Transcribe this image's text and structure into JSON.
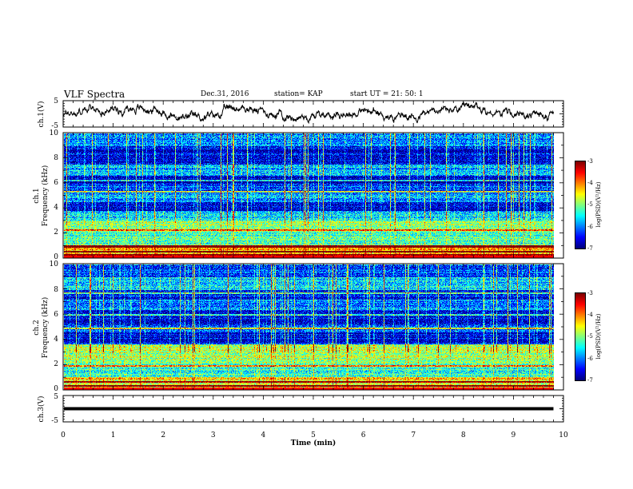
{
  "header": {
    "title": "VLF Spectra",
    "date": "Dec.31, 2016",
    "station": "station= KAP",
    "start": "start  UT =   21: 50: 1"
  },
  "chart_data": [
    {
      "type": "line",
      "name": "ch1-waveform",
      "ylabel": "ch.1(V)",
      "ylim": [
        -5,
        5
      ],
      "yticks": [
        "5",
        "-5"
      ],
      "xlim": [
        0,
        10
      ],
      "baseline_levels": [
        {
          "x": 0.0,
          "y": 0.0
        },
        {
          "x": 0.5,
          "y": 1.5
        },
        {
          "x": 1.0,
          "y": 2.0
        },
        {
          "x": 1.5,
          "y": 2.2
        },
        {
          "x": 2.0,
          "y": 1.2
        },
        {
          "x": 2.3,
          "y": -2.0
        },
        {
          "x": 3.0,
          "y": -1.0
        },
        {
          "x": 3.4,
          "y": 2.5
        },
        {
          "x": 4.0,
          "y": 1.0
        },
        {
          "x": 4.5,
          "y": -1.0
        },
        {
          "x": 5.0,
          "y": -1.0
        },
        {
          "x": 5.5,
          "y": 0.5
        },
        {
          "x": 6.0,
          "y": 1.0
        },
        {
          "x": 6.5,
          "y": -0.5
        },
        {
          "x": 7.0,
          "y": -1.0
        },
        {
          "x": 7.5,
          "y": 1.0
        },
        {
          "x": 8.0,
          "y": 2.0
        },
        {
          "x": 8.5,
          "y": 1.0
        },
        {
          "x": 9.0,
          "y": 0.0
        },
        {
          "x": 9.5,
          "y": -1.0
        },
        {
          "x": 9.8,
          "y": 0.0
        }
      ]
    },
    {
      "type": "heatmap",
      "name": "ch1-spectrogram",
      "ylabel_line1": "ch.1",
      "ylabel_line2": "Frequency (kHz)",
      "ylim": [
        0,
        10
      ],
      "yticks": [
        "0",
        "2",
        "4",
        "6",
        "8",
        "10"
      ],
      "xlim": [
        0,
        10
      ],
      "data_end_min": 9.8,
      "colorbar": {
        "label": "log(PSD)(V²/Hz)",
        "range": [
          -7,
          -3
        ],
        "ticks": [
          "-3",
          "-4",
          "-5",
          "-6",
          "-7"
        ]
      },
      "frequency_bands_kHz": [
        {
          "from": 0.0,
          "to": 1.0,
          "level": -4.2
        },
        {
          "from": 1.0,
          "to": 2.0,
          "level": -5.2
        },
        {
          "from": 2.0,
          "to": 3.0,
          "level": -5.0
        },
        {
          "from": 3.0,
          "to": 3.8,
          "level": -5.6
        },
        {
          "from": 3.8,
          "to": 4.5,
          "level": -6.6
        },
        {
          "from": 4.5,
          "to": 5.2,
          "level": -5.8
        },
        {
          "from": 5.2,
          "to": 6.0,
          "level": -6.2
        },
        {
          "from": 6.0,
          "to": 6.6,
          "level": -6.8
        },
        {
          "from": 6.6,
          "to": 7.5,
          "level": -5.8
        },
        {
          "from": 7.5,
          "to": 9.0,
          "level": -6.6
        },
        {
          "from": 9.0,
          "to": 10.0,
          "level": -5.9
        }
      ],
      "lines_kHz": [
        0.2,
        0.5,
        0.9,
        2.2,
        5.3,
        6.2
      ]
    },
    {
      "type": "heatmap",
      "name": "ch2-spectrogram",
      "ylabel_line1": "ch.2",
      "ylabel_line2": "Frequency (kHz)",
      "ylim": [
        0,
        10
      ],
      "yticks": [
        "0",
        "2",
        "4",
        "6",
        "8",
        "10"
      ],
      "xlim": [
        0,
        10
      ],
      "data_end_min": 9.8,
      "colorbar": {
        "label": "log(PSD)(V²/Hz)",
        "range": [
          -7,
          -3
        ],
        "ticks": [
          "-3",
          "-4",
          "-5",
          "-6",
          "-7"
        ]
      },
      "frequency_bands_kHz": [
        {
          "from": 0.0,
          "to": 1.0,
          "level": -4.4
        },
        {
          "from": 1.0,
          "to": 2.0,
          "level": -5.4
        },
        {
          "from": 2.0,
          "to": 3.6,
          "level": -4.9
        },
        {
          "from": 3.6,
          "to": 4.6,
          "level": -6.6
        },
        {
          "from": 4.6,
          "to": 5.2,
          "level": -6.1
        },
        {
          "from": 5.2,
          "to": 6.4,
          "level": -6.6
        },
        {
          "from": 6.4,
          "to": 7.2,
          "level": -5.9
        },
        {
          "from": 7.2,
          "to": 8.0,
          "level": -6.6
        },
        {
          "from": 8.0,
          "to": 9.0,
          "level": -5.6
        },
        {
          "from": 9.0,
          "to": 10.0,
          "level": -6.3
        }
      ],
      "lines_kHz": [
        0.3,
        0.6,
        1.9,
        4.9,
        6.0,
        7.7
      ]
    },
    {
      "type": "line",
      "name": "ch3-waveform",
      "ylabel": "ch.3(V)",
      "ylim": [
        -5,
        5
      ],
      "yticks": [
        "5",
        "-5"
      ],
      "xlim": [
        0,
        10
      ],
      "level": 0.0
    }
  ],
  "xaxis": {
    "label": "Time  (min)",
    "ticks": [
      "0",
      "1",
      "2",
      "3",
      "4",
      "5",
      "6",
      "7",
      "8",
      "9",
      "10"
    ],
    "range": [
      0,
      10
    ]
  }
}
